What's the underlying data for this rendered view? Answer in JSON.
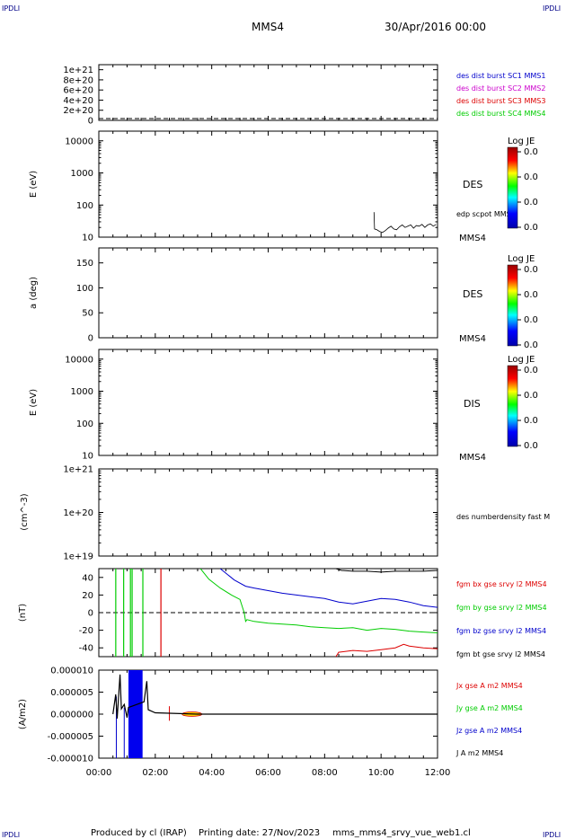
{
  "corner_label": "IPDLI",
  "header": {
    "spacecraft": "MMS4",
    "datetime": "30/Apr/2016 00:00"
  },
  "footer": {
    "producer": "Produced by cl (IRAP)",
    "printing": "Printing date: 27/Nov/2023",
    "filename": "mms_mms4_srvy_vue_web1.cl"
  },
  "colors": {
    "blue": "#0000cc",
    "magenta": "#cc00cc",
    "red": "#dd0000",
    "green": "#00cc00",
    "black": "#000000",
    "navy": "#000088"
  },
  "colorbar_label": "Log JE",
  "chart_data": [
    {
      "type": "line",
      "panel": "dist-burst",
      "ylabel": "",
      "ylim": [
        0,
        1.1e+21
      ],
      "y_ticks": [
        "0",
        "2e+20",
        "4e+20",
        "6e+20",
        "8e+20",
        "1e+21"
      ],
      "reference_line": 0,
      "series": [
        {
          "name": "des dist burst SC1 MMS1",
          "color": "#0000cc"
        },
        {
          "name": "des dist burst SC2 MMS2",
          "color": "#cc00cc"
        },
        {
          "name": "des dist burst SC3 MMS3",
          "color": "#dd0000"
        },
        {
          "name": "des dist burst SC4 MMS4",
          "color": "#00cc00"
        }
      ]
    },
    {
      "type": "heatmap",
      "panel": "des-energy",
      "ylabel": "E (eV)",
      "yscale": "log",
      "ylim": [
        10,
        20000
      ],
      "y_ticks": [
        "10",
        "100",
        "1000",
        "10000"
      ],
      "side_label": "DES",
      "corner_tag": "MMS4",
      "colorbar": {
        "label": "Log JE",
        "ticks": [
          "0.0",
          "0.0",
          "0.0",
          "0.0"
        ]
      },
      "overlay": {
        "name": "edp scpot MMS4",
        "color": "#000000",
        "points": [
          [
            9.75,
            60
          ],
          [
            9.77,
            18
          ],
          [
            9.85,
            17
          ],
          [
            9.95,
            15
          ],
          [
            10.05,
            14
          ],
          [
            10.15,
            16
          ],
          [
            10.25,
            19
          ],
          [
            10.35,
            22
          ],
          [
            10.45,
            18
          ],
          [
            10.55,
            17
          ],
          [
            10.65,
            21
          ],
          [
            10.75,
            24
          ],
          [
            10.85,
            20
          ],
          [
            10.95,
            22
          ],
          [
            11.05,
            24
          ],
          [
            11.15,
            19
          ],
          [
            11.25,
            23
          ],
          [
            11.35,
            22
          ],
          [
            11.45,
            25
          ],
          [
            11.55,
            20
          ],
          [
            11.65,
            24
          ],
          [
            11.75,
            26
          ],
          [
            11.85,
            22
          ],
          [
            11.95,
            25
          ]
        ]
      }
    },
    {
      "type": "heatmap",
      "panel": "des-pitch",
      "ylabel": "a (deg)",
      "ylim": [
        0,
        180
      ],
      "y_ticks": [
        "0",
        "50",
        "100",
        "150"
      ],
      "side_label": "DES",
      "corner_tag": "MMS4",
      "colorbar": {
        "label": "Log JE",
        "ticks": [
          "0.0",
          "0.0",
          "0.0",
          "0.0"
        ]
      }
    },
    {
      "type": "heatmap",
      "panel": "dis-energy",
      "ylabel": "E (eV)",
      "yscale": "log",
      "ylim": [
        10,
        20000
      ],
      "y_ticks": [
        "10",
        "100",
        "1000",
        "10000"
      ],
      "side_label": "DIS",
      "corner_tag": "MMS4",
      "colorbar": {
        "label": "Log JE",
        "ticks": [
          "0.0",
          "0.0",
          "0.0",
          "0.0"
        ]
      }
    },
    {
      "type": "line",
      "panel": "density",
      "ylabel": "(cm^-3)",
      "yscale": "log",
      "ylim": [
        1e+19,
        1e+21
      ],
      "y_ticks": [
        "1e+19",
        "1e+20",
        "1e+21"
      ],
      "series": [
        {
          "name": "des numberdensity fast M",
          "color": "#000000"
        }
      ]
    },
    {
      "type": "line",
      "panel": "fgm",
      "ylabel": "(nT)",
      "ylim": [
        -50,
        50
      ],
      "y_ticks": [
        "-40",
        "-20",
        "0",
        "20",
        "40"
      ],
      "reference_line": 0,
      "series": [
        {
          "name": "fgm bx gse srvy l2 MMS4",
          "color": "#dd0000",
          "points": [
            [
              8.4,
              -50
            ],
            [
              8.5,
              -45
            ],
            [
              9,
              -43
            ],
            [
              9.5,
              -44
            ],
            [
              10,
              -42
            ],
            [
              10.5,
              -40
            ],
            [
              10.8,
              -36
            ],
            [
              11,
              -38
            ],
            [
              11.5,
              -40
            ],
            [
              12,
              -41
            ]
          ]
        },
        {
          "name": "fgm by gse srvy l2 MMS4",
          "color": "#00cc00",
          "points": [
            [
              3.6,
              50
            ],
            [
              3.9,
              38
            ],
            [
              4.3,
              28
            ],
            [
              4.7,
              20
            ],
            [
              5,
              15
            ],
            [
              5.15,
              0
            ],
            [
              5.2,
              -10
            ],
            [
              5.25,
              -8
            ],
            [
              5.5,
              -10
            ],
            [
              6,
              -12
            ],
            [
              6.5,
              -13
            ],
            [
              7,
              -14
            ],
            [
              7.5,
              -16
            ],
            [
              8,
              -17
            ],
            [
              8.5,
              -18
            ],
            [
              9,
              -17
            ],
            [
              9.5,
              -20
            ],
            [
              10,
              -18
            ],
            [
              10.5,
              -19
            ],
            [
              11,
              -21
            ],
            [
              11.5,
              -22
            ],
            [
              12,
              -23
            ]
          ]
        },
        {
          "name": "fgm bz gse srvy l2 MMS4",
          "color": "#0000cc",
          "points": [
            [
              4.3,
              50
            ],
            [
              4.8,
              37
            ],
            [
              5.2,
              30
            ],
            [
              5.5,
              28
            ],
            [
              6,
              25
            ],
            [
              6.5,
              22
            ],
            [
              7,
              20
            ],
            [
              7.5,
              18
            ],
            [
              8,
              16
            ],
            [
              8.5,
              12
            ],
            [
              9,
              10
            ],
            [
              9.5,
              13
            ],
            [
              10,
              16
            ],
            [
              10.5,
              15
            ],
            [
              11,
              12
            ],
            [
              11.5,
              8
            ],
            [
              12,
              6
            ]
          ]
        },
        {
          "name": "fgm bt gse srvy l2 MMS4",
          "color": "#000000",
          "points": [
            [
              8.4,
              50
            ],
            [
              8.6,
              48
            ],
            [
              9,
              47
            ],
            [
              9.5,
              47
            ],
            [
              10,
              46
            ],
            [
              10.5,
              47
            ],
            [
              11,
              47
            ],
            [
              11.5,
              47
            ],
            [
              12,
              48
            ]
          ]
        }
      ],
      "spikes": [
        {
          "x": 0.6,
          "color": "#00cc00"
        },
        {
          "x": 0.88,
          "color": "#00cc00"
        },
        {
          "x": 1.12,
          "color": "#00cc00"
        },
        {
          "x": 1.18,
          "color": "#00cc00"
        },
        {
          "x": 1.56,
          "color": "#00cc00"
        },
        {
          "x": 2.2,
          "color": "#dd0000"
        }
      ]
    },
    {
      "type": "line",
      "panel": "current",
      "ylabel": "(A/m2)",
      "ylim": [
        -1e-05,
        1e-05
      ],
      "y_ticks": [
        "-0.000010",
        "-0.000005",
        "0.000000",
        "0.000005",
        "0.000010"
      ],
      "xlim": [
        0,
        12
      ],
      "x_ticks": [
        "00:00",
        "02:00",
        "04:00",
        "06:00",
        "08:00",
        "10:00",
        "12:00"
      ],
      "series": [
        {
          "name": "Jx gse A m2 MMS4",
          "color": "#dd0000"
        },
        {
          "name": "Jy gse A m2 MMS4",
          "color": "#00cc00"
        },
        {
          "name": "Jz gse A m2 MMS4",
          "color": "#0000cc"
        },
        {
          "name": "J A m2 MMS4",
          "color": "#000000",
          "points": [
            [
              0.5,
              0
            ],
            [
              0.6,
              4.5e-06
            ],
            [
              0.65,
              -1e-06
            ],
            [
              0.75,
              9e-06
            ],
            [
              0.8,
              1.2e-06
            ],
            [
              0.9,
              2.2e-06
            ],
            [
              1.0,
              -8e-07
            ],
            [
              1.05,
              1.5e-06
            ],
            [
              1.6,
              2.8e-06
            ],
            [
              1.7,
              7.5e-06
            ],
            [
              1.75,
              1e-06
            ],
            [
              2.0,
              3e-07
            ],
            [
              3.5,
              0
            ],
            [
              12,
              0
            ]
          ]
        }
      ],
      "fill_band": {
        "x": [
          1.05,
          1.55
        ],
        "color": "#0000ee"
      }
    }
  ]
}
